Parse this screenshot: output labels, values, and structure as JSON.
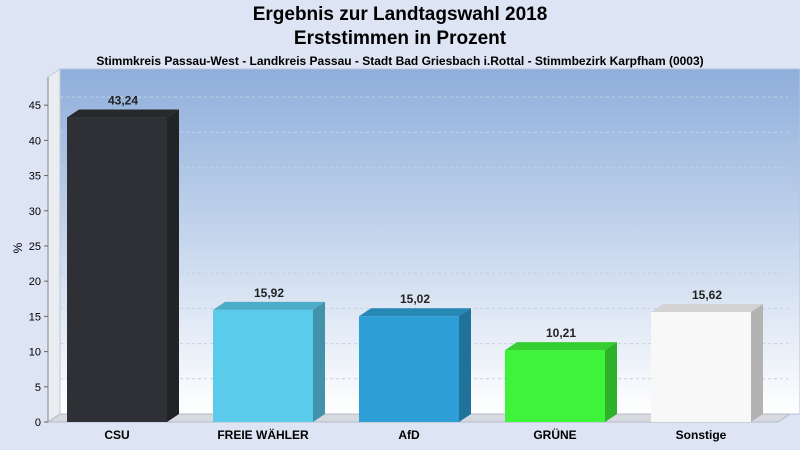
{
  "chart_data": {
    "type": "bar",
    "title": "Ergebnis zur Landtagswahl 2018",
    "title_line2": "Erststimmen in Prozent",
    "subtitle": "Stimmkreis Passau-West - Landkreis Passau - Stadt Bad Griesbach i.Rottal - Stimmbezirk Karpfham (0003)",
    "ylabel": "%",
    "xlabel": "",
    "ylim": [
      0,
      49
    ],
    "yticks": [
      0,
      5,
      10,
      15,
      20,
      25,
      30,
      35,
      40,
      45
    ],
    "categories": [
      "CSU",
      "FREIE WÄHLER",
      "AfD",
      "GRÜNE",
      "Sonstige"
    ],
    "values": [
      43.24,
      15.92,
      15.02,
      10.21,
      15.62
    ],
    "value_labels": [
      "43,24",
      "15,92",
      "15,02",
      "10,21",
      "15,62"
    ],
    "colors": [
      "#2f3035",
      "#5bcbec",
      "#2e9fd6",
      "#3ef43a",
      "#f8f8f8"
    ],
    "grid": true,
    "legend": "none"
  }
}
